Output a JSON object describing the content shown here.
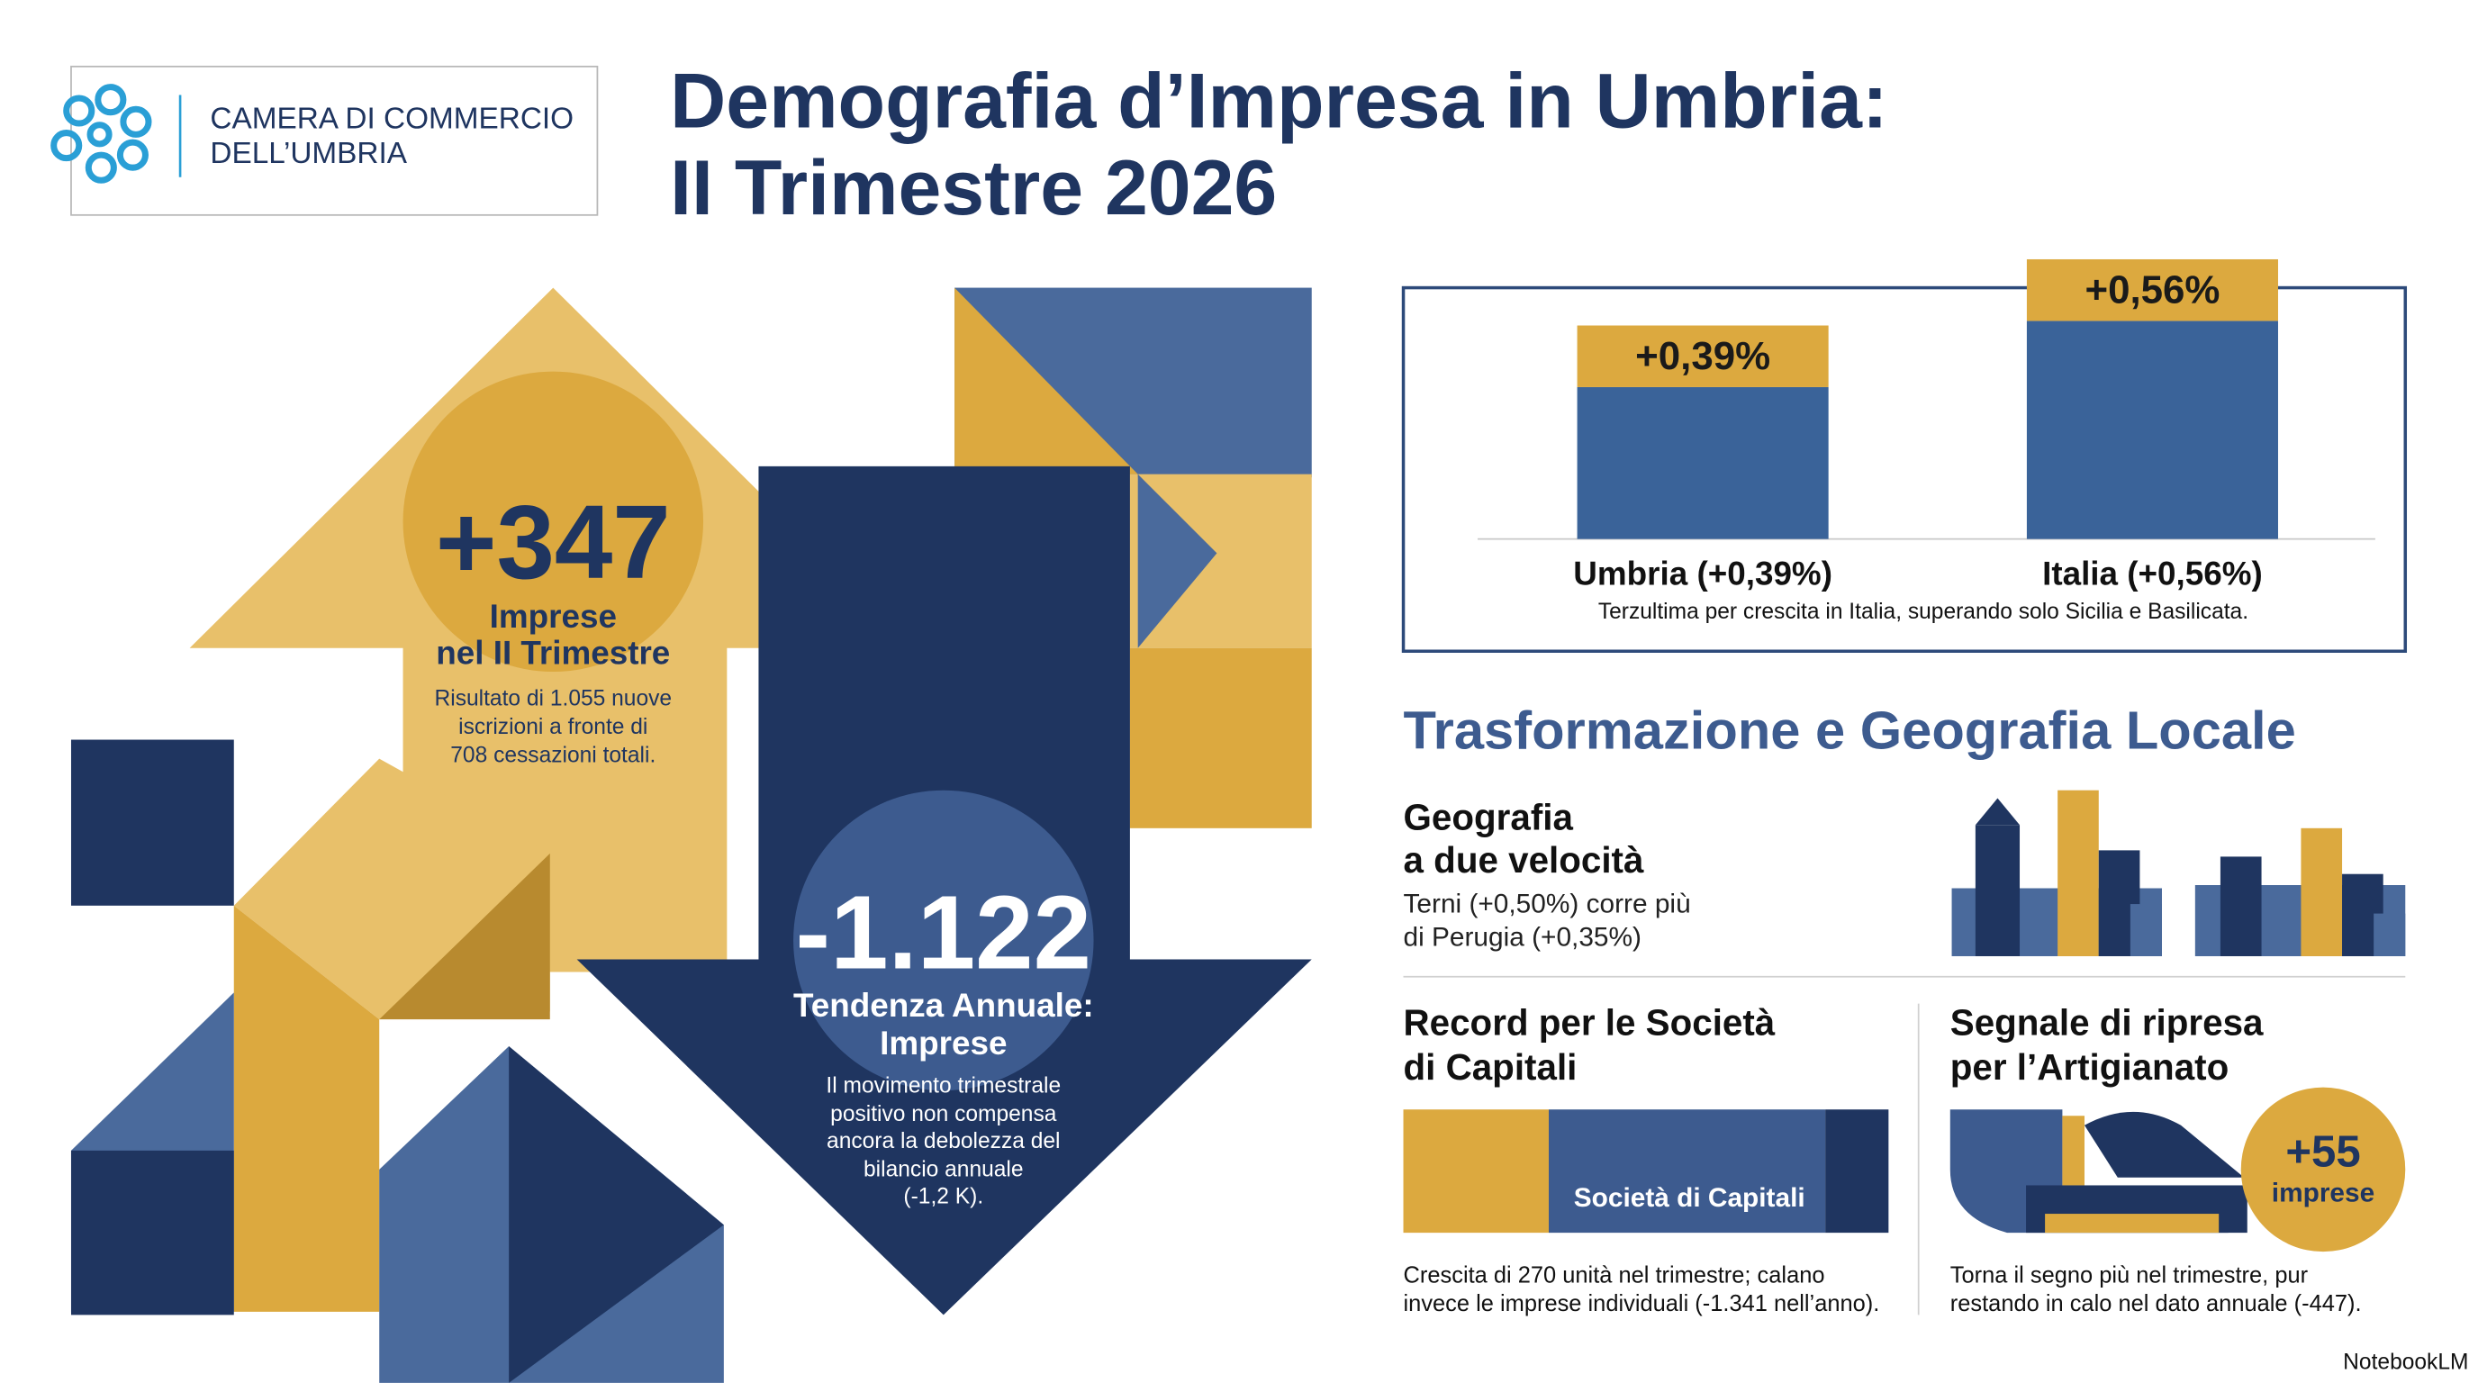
{
  "header": {
    "logo_line1": "CAMERA DI COMMERCIO",
    "logo_line2": "DELL’UMBRIA",
    "title_line1": "Demografia d’Impresa in Umbria:",
    "title_line2": "II Trimestre 2026"
  },
  "highlights": {
    "quarter": {
      "value": "+347",
      "label_lines": [
        "Imprese",
        "nel II Trimestre"
      ],
      "note_lines": [
        "Risultato di 1.055 nuove",
        "iscrizioni a fronte di",
        "708 cessazioni totali."
      ]
    },
    "annual": {
      "value": "-1.122",
      "label_lines": [
        "Tendenza Annuale:",
        "Imprese"
      ],
      "note_lines": [
        "Il movimento trimestrale",
        "positivo non compensa",
        "ancora la debolezza del",
        "bilancio annuale",
        "(-1,2 K)."
      ]
    }
  },
  "chart_data": {
    "type": "bar",
    "categories": [
      "Umbria (+0,39%)",
      "Italia (+0,56%)"
    ],
    "values": [
      0.39,
      0.56
    ],
    "value_labels": [
      "+0,39%",
      "+0,56%"
    ],
    "color": "#3a6399",
    "label_color": "#dca93f",
    "caption": "Terzultima per crescita in Italia, superando solo Sicilia e Basilicata."
  },
  "section": {
    "title": "Trasformazione e Geografia Locale",
    "geography": {
      "title_lines": [
        "Geografia",
        "a due velocità"
      ],
      "text_lines": [
        "Terni (+0,50%) corre più",
        "di Perugia (+0,35%)"
      ]
    },
    "capital": {
      "title_lines": [
        "Record per le Società",
        "di Capitali"
      ],
      "bar_label": "Società di Capitali",
      "text_lines": [
        "Crescita di 270 unità nel trimestre; calano",
        "invece le imprese individuali (-1.341 nell’anno)."
      ]
    },
    "crafts": {
      "title_lines": [
        "Segnale di ripresa",
        "per l’Artigianato"
      ],
      "badge_value": "+55",
      "badge_label": "imprese",
      "text_lines": [
        "Torna il segno più nel trimestre, pur",
        "restando in calo nel dato annuale (-447)."
      ]
    }
  },
  "footer": {
    "brand": "NotebookLM"
  }
}
